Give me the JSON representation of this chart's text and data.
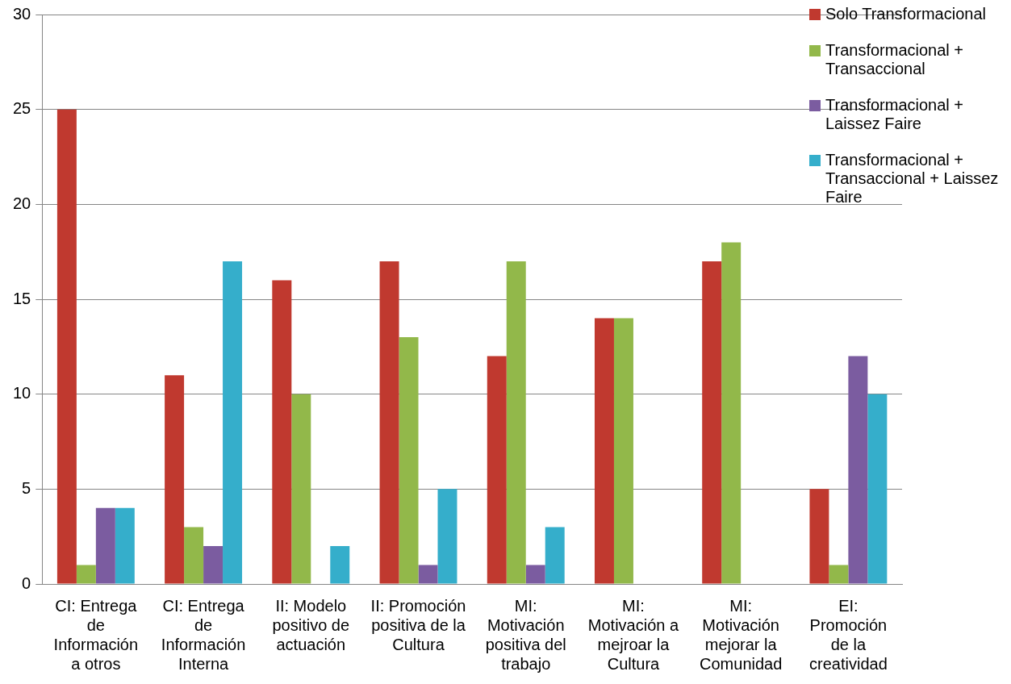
{
  "chart_data": {
    "type": "bar",
    "categories": [
      "CI: Entrega de Información a otros",
      "CI: Entrega de Información Interna",
      "II: Modelo positivo de actuación",
      "II: Promoción positiva de la Cultura",
      "MI: Motivación positiva del trabajo",
      "MI: Motivación a mejroar la Cultura",
      "MI: Motivación mejorar la Comunidad",
      "EI: Promoción de la creatividad"
    ],
    "series": [
      {
        "name": "Solo Transformacional",
        "color": "#c0392f",
        "values": [
          25,
          11,
          16,
          17,
          12,
          14,
          17,
          5
        ]
      },
      {
        "name": "Transformacional + Transaccional",
        "color": "#92b84a",
        "values": [
          1,
          3,
          10,
          13,
          17,
          14,
          18,
          1
        ]
      },
      {
        "name": "Transformacional + Laissez Faire",
        "color": "#7b5ca0",
        "values": [
          4,
          2,
          null,
          1,
          1,
          null,
          null,
          12
        ]
      },
      {
        "name": "Transformacional + Transaccional + Laissez Faire",
        "color": "#35aecb",
        "values": [
          4,
          17,
          2,
          5,
          3,
          null,
          null,
          10
        ]
      }
    ],
    "ylim": [
      0,
      30
    ],
    "yticks": [
      0,
      5,
      10,
      15,
      20,
      25,
      30
    ],
    "grid": "y",
    "legend": "top right"
  }
}
